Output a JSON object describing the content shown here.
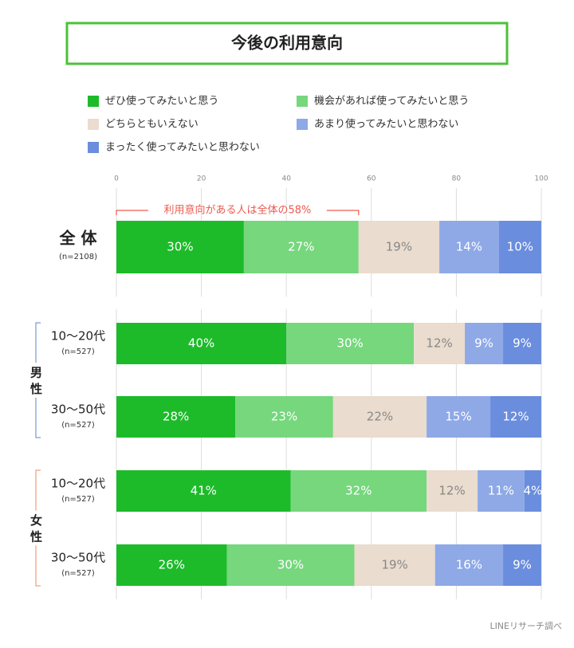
{
  "chart_data": {
    "type": "stacked-bar-horizontal",
    "title": "今後の利用意向",
    "categories": [
      "全 体",
      "10〜20代",
      "30〜50代",
      "10〜20代",
      "30〜50代"
    ],
    "category_notes": [
      "(n=2108)",
      "(n=527)",
      "(n=527)",
      "(n=527)",
      "(n=527)"
    ],
    "category_groups": [
      null,
      "男 性",
      "男 性",
      "女 性",
      "女 性"
    ],
    "series": [
      {
        "name": "ぜひ使ってみたいと思う",
        "color": "#1dbb2a",
        "values": [
          30,
          40,
          28,
          41,
          26
        ],
        "value_labels": [
          "30%",
          "40%",
          "28%",
          "41%",
          "26%"
        ]
      },
      {
        "name": "機会があれば使ってみたいと思う",
        "color": "#76d77d",
        "values": [
          27,
          30,
          23,
          32,
          30
        ],
        "value_labels": [
          "27%",
          "30%",
          "23%",
          "32%",
          "30%"
        ]
      },
      {
        "name": "どちらともいえない",
        "color": "#eadcce",
        "values": [
          19,
          12,
          22,
          12,
          19
        ],
        "value_labels": [
          "19%",
          "12%",
          "22%",
          "12%",
          "19%"
        ]
      },
      {
        "name": "あまり使ってみたいと思わない",
        "color": "#8ea9e6",
        "values": [
          14,
          9,
          15,
          11,
          16
        ],
        "value_labels": [
          "14%",
          "9%",
          "15%",
          "11%",
          "16%"
        ]
      },
      {
        "name": "まったく使ってみたいと思わない",
        "color": "#6a8ddd",
        "values": [
          10,
          9,
          12,
          4,
          9
        ],
        "value_labels": [
          "10%",
          "9%",
          "12%",
          "4%",
          "9%"
        ]
      }
    ],
    "xlim": [
      0,
      100
    ],
    "xticks": [
      0,
      20,
      40,
      60,
      80,
      100
    ],
    "grid": true,
    "annotation": "利用意向がある人は全体の58%",
    "source": "LINEリサーチ調べ"
  }
}
